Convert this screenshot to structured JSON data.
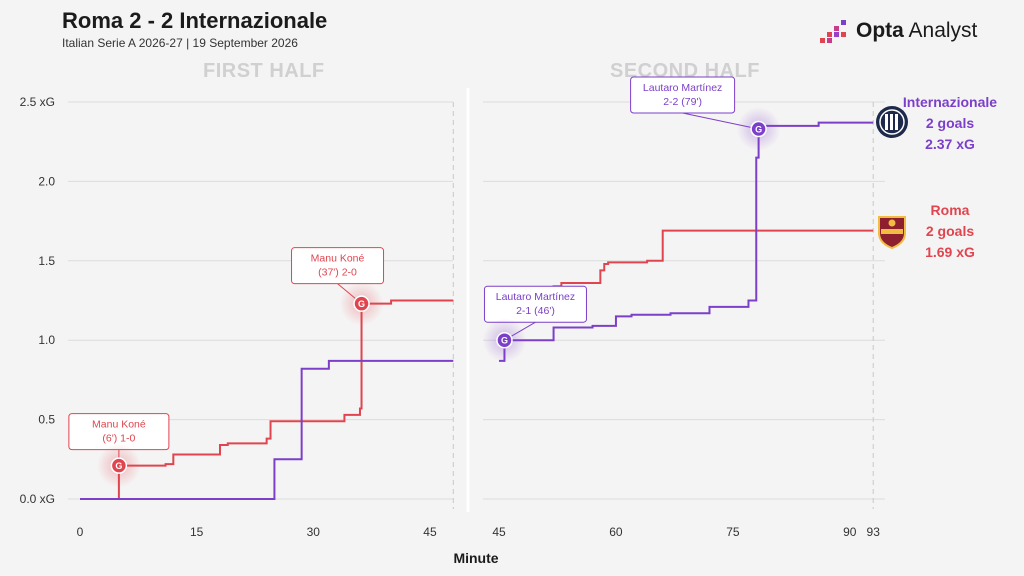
{
  "header": {
    "title": "Roma 2 - 2 Internazionale",
    "subtitle": "Italian Serie A 2026-27 | 19 September 2026",
    "brand_bold": "Opta",
    "brand_rest": " Analyst"
  },
  "colors": {
    "roma": "#e0454f",
    "inter": "#7b3fc9",
    "grid": "#dcdcdc",
    "halfLabel": "#d0d0d0"
  },
  "teams": {
    "inter": {
      "name": "Internazionale",
      "goals": "2 goals",
      "xg": "2.37 xG",
      "icon": "inter-crest-icon"
    },
    "roma": {
      "name": "Roma",
      "goals": "2 goals",
      "xg": "1.69 xG",
      "icon": "roma-crest-icon"
    }
  },
  "chart_data": {
    "type": "line",
    "step": true,
    "xlabel": "Minute",
    "ylabel": "",
    "grid": true,
    "ylim": [
      0,
      2.5
    ],
    "yticks": [
      {
        "v": 0,
        "label": "0.0 xG"
      },
      {
        "v": 0.5,
        "label": "0.5"
      },
      {
        "v": 1.0,
        "label": "1.0"
      },
      {
        "v": 1.5,
        "label": "1.5"
      },
      {
        "v": 2.0,
        "label": "2.0"
      },
      {
        "v": 2.5,
        "label": "2.5 xG"
      }
    ],
    "halves": [
      {
        "label": "FIRST HALF",
        "xlim": [
          0,
          48
        ],
        "xticks": [
          0,
          15,
          30,
          45
        ],
        "end": 48,
        "series": [
          {
            "team": "roma",
            "points": [
              [
                0,
                0
              ],
              [
                5,
                0.21
              ],
              [
                11,
                0.22
              ],
              [
                12,
                0.28
              ],
              [
                18,
                0.34
              ],
              [
                19,
                0.35
              ],
              [
                24,
                0.38
              ],
              [
                24.5,
                0.49
              ],
              [
                34,
                0.53
              ],
              [
                36,
                0.57
              ],
              [
                36.2,
                1.23
              ],
              [
                40,
                1.25
              ],
              [
                48,
                1.25
              ]
            ]
          },
          {
            "team": "inter",
            "points": [
              [
                0,
                0
              ],
              [
                25,
                0.25
              ],
              [
                28.5,
                0.82
              ],
              [
                32,
                0.87
              ],
              [
                48,
                0.87
              ]
            ]
          }
        ],
        "goals": [
          {
            "team": "roma",
            "minute": 5,
            "xg": 0.21,
            "label_lines": [
              "Manu Koné",
              "(6') 1-0"
            ],
            "marker": "G"
          },
          {
            "team": "roma",
            "minute": 36.2,
            "xg": 1.23,
            "label_lines": [
              "Manu Koné",
              "(37') 2-0"
            ],
            "marker": "G"
          }
        ]
      },
      {
        "label": "SECOND HALF",
        "xlim": [
          45,
          94
        ],
        "xticks": [
          45,
          60,
          75,
          90,
          93
        ],
        "end": 93,
        "series": [
          {
            "team": "roma",
            "points": [
              [
                45,
                1.25
              ],
              [
                52,
                1.34
              ],
              [
                53,
                1.36
              ],
              [
                58,
                1.44
              ],
              [
                58.5,
                1.48
              ],
              [
                59,
                1.49
              ],
              [
                64,
                1.5
              ],
              [
                66,
                1.69
              ],
              [
                93,
                1.69
              ]
            ]
          },
          {
            "team": "inter",
            "points": [
              [
                45,
                0.87
              ],
              [
                45.7,
                1.0
              ],
              [
                52,
                1.08
              ],
              [
                57,
                1.09
              ],
              [
                60,
                1.15
              ],
              [
                62,
                1.16
              ],
              [
                67,
                1.17
              ],
              [
                72,
                1.21
              ],
              [
                77,
                1.25
              ],
              [
                78,
                2.15
              ],
              [
                78.3,
                2.33
              ],
              [
                79,
                2.35
              ],
              [
                86,
                2.37
              ],
              [
                93,
                2.37
              ]
            ]
          }
        ],
        "goals": [
          {
            "team": "inter",
            "minute": 45.7,
            "xg": 1.0,
            "label_lines": [
              "Lautaro Martínez",
              "2-1 (46')"
            ],
            "marker": "G"
          },
          {
            "team": "inter",
            "minute": 78.3,
            "xg": 2.33,
            "label_lines": [
              "Lautaro Martínez",
              "2-2 (79')"
            ],
            "marker": "G"
          }
        ]
      }
    ]
  }
}
